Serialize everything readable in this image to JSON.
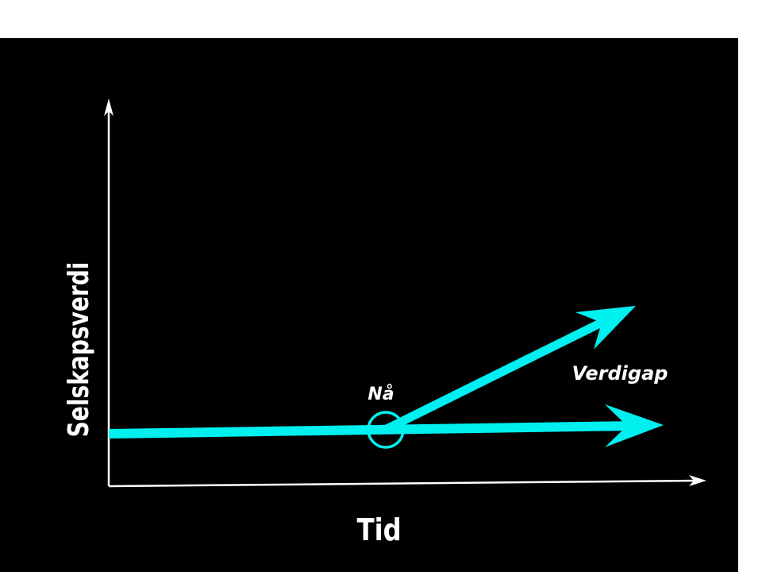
{
  "diagram": {
    "y_axis_label": "Selskapsverdi",
    "x_axis_label": "Tid",
    "now_label": "Nå",
    "gap_label": "Verdigap",
    "colors": {
      "background": "#000000",
      "arrow": "#00f0f0",
      "axis": "#ffffff",
      "text": "#ffffff"
    }
  }
}
